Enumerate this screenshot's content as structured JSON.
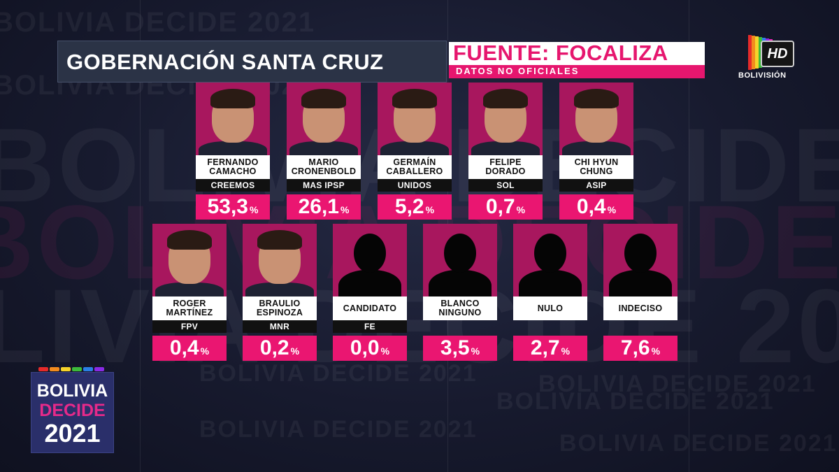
{
  "background": {
    "watermark_small": "BOLIVIA DECIDE 2021",
    "watermark_big": "BOLIVIA DECIDE 2021"
  },
  "header": {
    "title": "GOBERNACIÓN SANTA CRUZ",
    "source": "FUENTE: FOCALIZA",
    "source_note": "DATOS NO OFICIALES"
  },
  "channel": {
    "badge": "HD",
    "name": "BOLIVISIÓN",
    "stripe_colors": [
      "#e62a2a",
      "#f28b1e",
      "#f6d32a",
      "#3dbb3b",
      "#2a7fe6",
      "#8a2ae6",
      "#e62ab5"
    ]
  },
  "candidates_row1": [
    {
      "name": "FERNANDO\nCAMACHO",
      "party": "CREEMOS",
      "value": "53,3",
      "silhouette": false
    },
    {
      "name": "MARIO\nCRONENBOLD",
      "party": "MAS IPSP",
      "value": "26,1",
      "silhouette": false
    },
    {
      "name": "GERMAÍN\nCABALLERO",
      "party": "UNIDOS",
      "value": "5,2",
      "silhouette": false
    },
    {
      "name": "FELIPE\nDORADO",
      "party": "SOL",
      "value": "0,7",
      "silhouette": false
    },
    {
      "name": "CHI HYUN\nCHUNG",
      "party": "ASIP",
      "value": "0,4",
      "silhouette": false
    }
  ],
  "candidates_row2": [
    {
      "name": "ROGER\nMARTÍNEZ",
      "party": "FPV",
      "value": "0,4",
      "silhouette": false
    },
    {
      "name": "BRAULIO\nESPINOZA",
      "party": "MNR",
      "value": "0,2",
      "silhouette": false
    },
    {
      "name": "CANDIDATO",
      "party": "FE",
      "value": "0,0",
      "silhouette": true
    },
    {
      "name": "BLANCO\nNINGUNO",
      "party": "",
      "value": "3,5",
      "silhouette": true
    },
    {
      "name": "NULO",
      "party": "",
      "value": "2,7",
      "silhouette": true
    },
    {
      "name": "INDECISO",
      "party": "",
      "value": "7,6",
      "silhouette": true
    }
  ],
  "percent_symbol": "%",
  "brand": {
    "line1": "BOLIVIA",
    "line2": "DECIDE",
    "line3": "2021",
    "strip_colors": [
      "#e62a2a",
      "#f28b1e",
      "#f6d32a",
      "#3dbb3b",
      "#2a7fe6",
      "#8a2ae6"
    ]
  },
  "colors": {
    "accent": "#ea1671",
    "photo_bg": "#a8175e",
    "title_bg": "#2b3346"
  }
}
